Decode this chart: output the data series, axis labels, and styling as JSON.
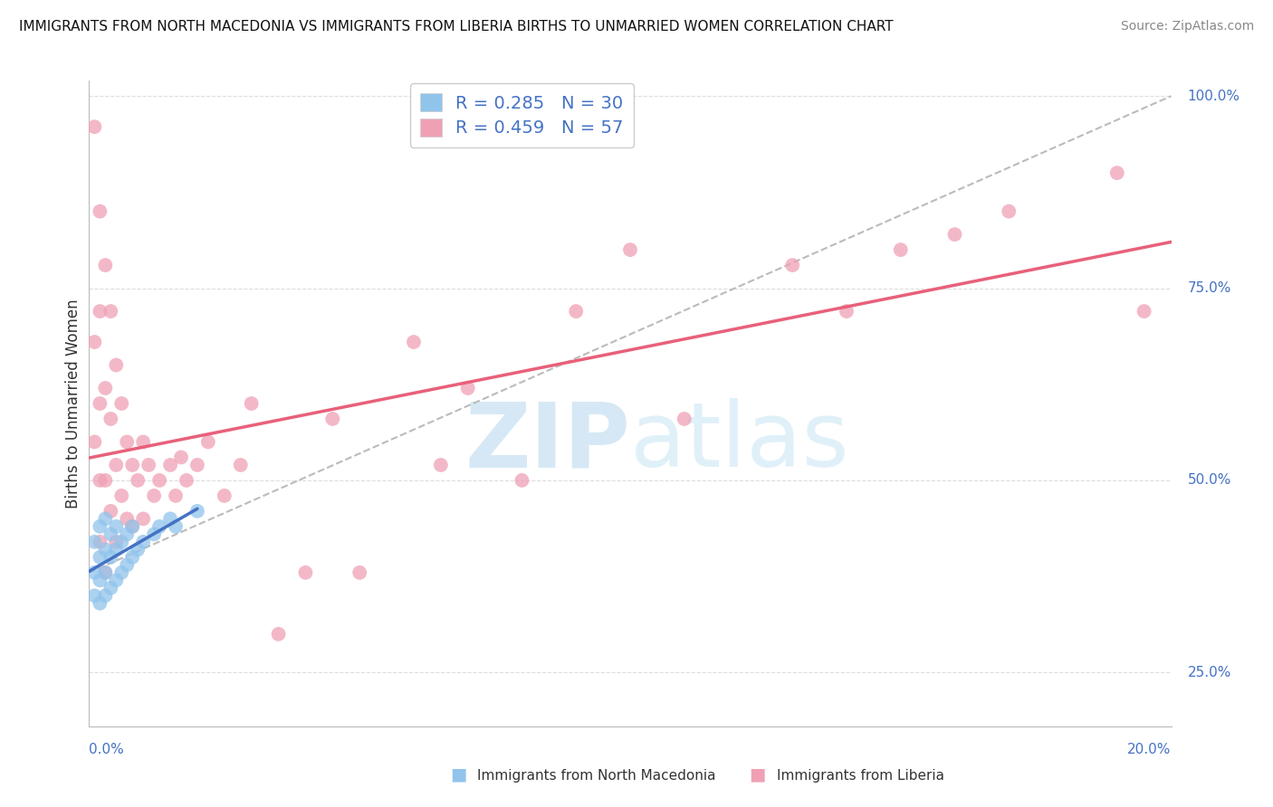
{
  "title": "IMMIGRANTS FROM NORTH MACEDONIA VS IMMIGRANTS FROM LIBERIA BIRTHS TO UNMARRIED WOMEN CORRELATION CHART",
  "source": "Source: ZipAtlas.com",
  "ylabel_label": "Births to Unmarried Women",
  "legend1_label": "Immigrants from North Macedonia",
  "legend2_label": "Immigrants from Liberia",
  "R1": 0.285,
  "N1": 30,
  "R2": 0.459,
  "N2": 57,
  "color_blue_scatter": "#91C4EB",
  "color_pink_scatter": "#F0A0B5",
  "color_blue_line": "#4472C4",
  "color_pink_line": "#E8607A",
  "color_dashed": "#BBBBBB",
  "color_text_blue": "#4472C4",
  "color_axis_label": "#333333",
  "background": "#FFFFFF",
  "x_min": 0.0,
  "x_max": 0.2,
  "y_min": 0.18,
  "y_max": 1.02,
  "ytick_vals": [
    0.25,
    0.5,
    0.75,
    1.0
  ],
  "ytick_labels": [
    "25.0%",
    "50.0%",
    "75.0%",
    "100.0%"
  ],
  "xtick_left_label": "0.0%",
  "xtick_right_label": "20.0%",
  "nm_x": [
    0.001,
    0.001,
    0.001,
    0.002,
    0.002,
    0.002,
    0.002,
    0.003,
    0.003,
    0.003,
    0.003,
    0.004,
    0.004,
    0.004,
    0.005,
    0.005,
    0.005,
    0.006,
    0.006,
    0.007,
    0.007,
    0.008,
    0.008,
    0.009,
    0.01,
    0.012,
    0.013,
    0.015,
    0.016,
    0.02
  ],
  "nm_y": [
    0.35,
    0.38,
    0.42,
    0.34,
    0.37,
    0.4,
    0.44,
    0.35,
    0.38,
    0.41,
    0.45,
    0.36,
    0.4,
    0.43,
    0.37,
    0.41,
    0.44,
    0.38,
    0.42,
    0.39,
    0.43,
    0.4,
    0.44,
    0.41,
    0.42,
    0.43,
    0.44,
    0.45,
    0.44,
    0.46
  ],
  "lib_x": [
    0.001,
    0.001,
    0.001,
    0.002,
    0.002,
    0.002,
    0.002,
    0.002,
    0.003,
    0.003,
    0.003,
    0.003,
    0.004,
    0.004,
    0.004,
    0.005,
    0.005,
    0.005,
    0.006,
    0.006,
    0.007,
    0.007,
    0.008,
    0.008,
    0.009,
    0.01,
    0.01,
    0.011,
    0.012,
    0.013,
    0.015,
    0.016,
    0.017,
    0.018,
    0.02,
    0.022,
    0.025,
    0.028,
    0.03,
    0.035,
    0.04,
    0.045,
    0.05,
    0.06,
    0.065,
    0.07,
    0.08,
    0.09,
    0.1,
    0.11,
    0.13,
    0.14,
    0.15,
    0.16,
    0.17,
    0.19,
    0.195
  ],
  "lib_y": [
    0.96,
    0.68,
    0.55,
    0.85,
    0.72,
    0.6,
    0.5,
    0.42,
    0.78,
    0.62,
    0.5,
    0.38,
    0.72,
    0.58,
    0.46,
    0.65,
    0.52,
    0.42,
    0.6,
    0.48,
    0.55,
    0.45,
    0.52,
    0.44,
    0.5,
    0.55,
    0.45,
    0.52,
    0.48,
    0.5,
    0.52,
    0.48,
    0.53,
    0.5,
    0.52,
    0.55,
    0.48,
    0.52,
    0.6,
    0.3,
    0.38,
    0.58,
    0.38,
    0.68,
    0.52,
    0.62,
    0.5,
    0.72,
    0.8,
    0.58,
    0.78,
    0.72,
    0.8,
    0.82,
    0.85,
    0.9,
    0.72
  ]
}
